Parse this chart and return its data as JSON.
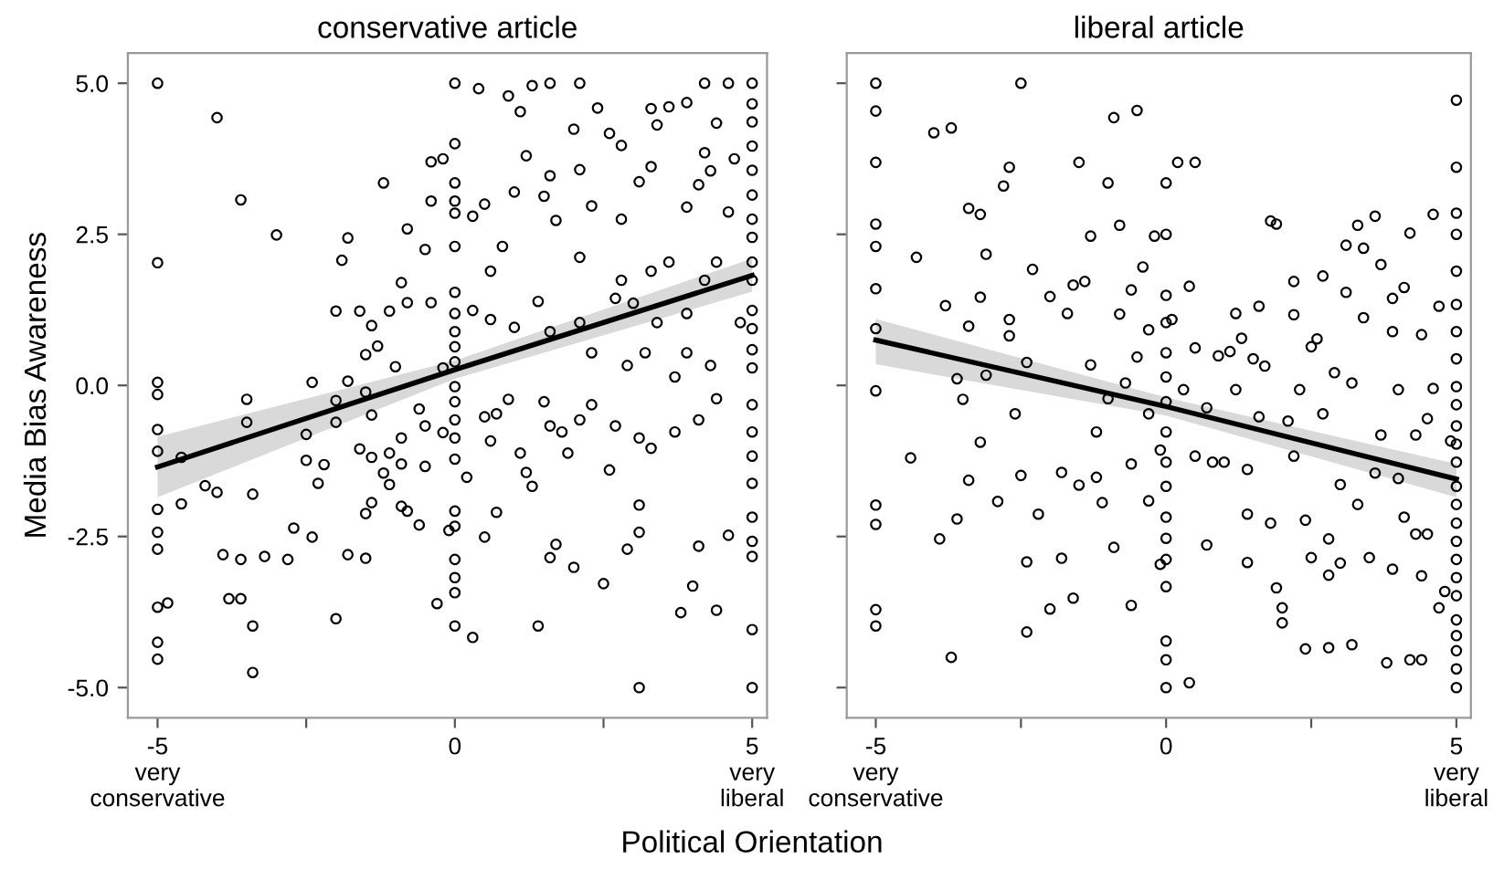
{
  "chart_data": [
    {
      "type": "scatter",
      "title": "conservative article",
      "ylabel": "Media Bias Awareness",
      "xlabel": "Political Orientation",
      "xlim": [
        -5.5,
        5.25
      ],
      "ylim": [
        -5.5,
        5.5
      ],
      "xticks": [
        {
          "value": -5,
          "label": "-5\nvery\nconservative"
        },
        {
          "value": -2.5,
          "label": null
        },
        0,
        {
          "value": 2.5,
          "label": null
        },
        {
          "value": 5,
          "label": "5\nvery\nliberal"
        }
      ],
      "yticks": [
        {
          "value": -5,
          "label": "-5.0"
        },
        {
          "value": -2.5,
          "label": "-2.5"
        },
        {
          "value": 0,
          "label": "0.0"
        },
        {
          "value": 2.5,
          "label": "2.5"
        },
        {
          "value": 5,
          "label": "5.0"
        }
      ],
      "grid": false,
      "legend": false,
      "series": [
        {
          "marker": "circle",
          "color": "#000000",
          "x": [
            -5,
            -5,
            -5,
            -5,
            -5,
            -5,
            -5,
            -5,
            -5,
            -5,
            -5,
            -5,
            -4.83,
            -4.6,
            -4.6,
            -4.0,
            -3.6,
            -3.0,
            -3.5,
            -3.5,
            -3.4,
            -3.4,
            -3.4,
            -4.2,
            -4.0,
            -3.9,
            -3.6,
            -3.8,
            -3.6,
            -3.2,
            -2.81,
            -2.71,
            -2.4,
            -2.4,
            -2.5,
            -2.5,
            -2.3,
            -2.2,
            -2.0,
            -1.9,
            -1.8,
            -2.0,
            -2.0,
            -1.8,
            -1.6,
            -1.5,
            -1.4,
            -1.6,
            -1.4,
            -1.4,
            -1.5,
            -2.0,
            -1.8,
            -1.5,
            -1.5,
            -1.4,
            -1.3,
            -1.2,
            -1.1,
            -1.1,
            -1.1,
            -1.2,
            -1.0,
            -0.9,
            -0.8,
            -0.8,
            -0.9,
            -0.9,
            -0.9,
            -0.8,
            -0.6,
            -0.5,
            -0.5,
            -0.6,
            -0.5,
            -0.4,
            -0.4,
            -0.2,
            -0.3,
            -0.1,
            -0.2,
            -0.2,
            -0.4,
            0,
            0,
            0,
            0,
            0,
            0,
            0,
            0,
            0,
            0,
            0,
            0,
            0,
            0,
            0,
            0,
            0,
            0,
            0,
            0,
            0,
            0,
            0.3,
            0.2,
            0.3,
            0.4,
            0.3,
            0.5,
            0.6,
            0.6,
            0.5,
            0.6,
            0.7,
            0.7,
            0.5,
            0.9,
            1.0,
            0.8,
            1.0,
            0.9,
            1.1,
            1.2,
            1.3,
            1.2,
            1.1,
            1.3,
            1.6,
            1.4,
            1.6,
            1.7,
            1.5,
            1.6,
            1.7,
            1.4,
            1.6,
            1.5,
            1.6,
            1.8,
            1.9,
            2.0,
            2.1,
            2.1,
            2.1,
            2.1,
            2.1,
            2.0,
            2.3,
            2.3,
            2.3,
            2.4,
            2.5,
            2.6,
            2.6,
            2.7,
            2.7,
            2.8,
            2.8,
            2.8,
            2.9,
            2.9,
            3.0,
            3.1,
            3.1,
            3.1,
            3.1,
            3.1,
            3.2,
            3.3,
            3.3,
            3.3,
            3.3,
            3.4,
            3.4,
            3.6,
            3.6,
            3.7,
            3.7,
            3.8,
            3.9,
            3.9,
            3.9,
            3.9,
            4.0,
            4.1,
            4.1,
            4.2,
            4.2,
            4.2,
            4.3,
            4.4,
            4.4,
            4.4,
            4.4,
            4.3,
            4.6,
            4.6,
            4.6,
            4.7,
            4.8,
            4.1,
            5,
            5,
            5,
            5,
            5,
            5,
            5,
            5,
            5,
            5,
            5,
            5,
            5,
            5,
            5,
            5,
            5,
            5,
            5,
            5,
            5,
            5,
            5
          ],
          "values": [
            5.0,
            2.03,
            0.05,
            -0.15,
            -0.73,
            -1.09,
            -2.05,
            -2.43,
            -2.71,
            -3.67,
            -4.25,
            -4.53,
            -3.6,
            -1.19,
            -1.96,
            4.43,
            3.07,
            2.49,
            -0.23,
            -0.61,
            -1.8,
            -3.98,
            -4.75,
            -1.66,
            -1.77,
            -2.8,
            -2.88,
            -3.53,
            -3.53,
            -2.83,
            -2.88,
            -2.36,
            -2.51,
            0.05,
            -0.81,
            -1.24,
            -1.62,
            -1.31,
            1.23,
            2.07,
            2.44,
            -0.25,
            -0.61,
            0.07,
            1.23,
            -0.11,
            -0.49,
            -1.05,
            -1.19,
            -1.94,
            -2.12,
            -3.86,
            -2.8,
            -2.86,
            0.51,
            0.99,
            0.65,
            3.35,
            1.23,
            -1.12,
            -1.64,
            -1.45,
            0.31,
            1.7,
            2.59,
            1.37,
            -0.87,
            -1.3,
            -2.0,
            -2.08,
            -2.31,
            -1.34,
            -0.67,
            -0.39,
            2.25,
            3.05,
            3.7,
            3.75,
            -3.61,
            -2.4,
            -0.78,
            0.29,
            1.37,
            5.0,
            4.0,
            3.35,
            3.05,
            2.85,
            2.3,
            1.54,
            1.19,
            0.89,
            0.64,
            0.39,
            -0.02,
            -0.27,
            -0.57,
            -0.87,
            -1.22,
            -2.08,
            -2.33,
            -2.88,
            -3.18,
            -3.43,
            -3.98,
            -4.17,
            -1.52,
            1.24,
            4.91,
            2.8,
            3.0,
            1.89,
            1.09,
            -0.52,
            -0.92,
            -0.47,
            -2.1,
            -2.51,
            4.79,
            3.2,
            2.3,
            0.96,
            -0.23,
            -1.12,
            -1.44,
            -1.67,
            3.8,
            4.53,
            4.96,
            5.0,
            -3.98,
            -2.85,
            -2.63,
            3.13,
            3.47,
            2.73,
            1.39,
            0.89,
            -0.27,
            -0.67,
            -0.77,
            -1.12,
            4.24,
            5.0,
            3.57,
            2.12,
            1.04,
            -0.57,
            -3.01,
            2.97,
            0.54,
            -0.32,
            4.59,
            -3.28,
            4.17,
            -1.4,
            -0.67,
            1.44,
            3.97,
            2.75,
            1.74,
            0.33,
            -2.71,
            1.36,
            3.37,
            -5.0,
            -2.43,
            -1.98,
            -0.87,
            0.54,
            4.58,
            3.62,
            1.89,
            -1.04,
            1.04,
            4.31,
            4.61,
            2.04,
            0.14,
            -0.77,
            -3.76,
            4.68,
            2.95,
            1.19,
            0.54,
            -3.32,
            3.32,
            -0.57,
            5.0,
            3.85,
            1.74,
            3.55,
            4.34,
            2.04,
            -0.22,
            -3.72,
            0.33,
            5.0,
            2.87,
            -2.48,
            3.75,
            1.04,
            -2.66,
            5.0,
            4.66,
            4.36,
            3.96,
            3.56,
            3.15,
            2.75,
            2.45,
            2.04,
            1.74,
            1.24,
            0.94,
            0.59,
            0.29,
            -0.32,
            -0.77,
            -1.17,
            -1.62,
            -2.18,
            -2.58,
            -2.83,
            -4.04,
            -5.0
          ]
        },
        {
          "type": "line",
          "color": "#000000",
          "line_style": "solid",
          "x": [
            -5,
            0,
            5
          ],
          "values": [
            -1.35,
            0.26,
            1.82
          ],
          "lower": [
            -1.85,
            0.11,
            1.55
          ],
          "upper": [
            -0.85,
            0.41,
            2.1
          ]
        }
      ]
    },
    {
      "type": "scatter",
      "title": "liberal article",
      "xlim": [
        -5.5,
        5.25
      ],
      "ylim": [
        -5.5,
        5.5
      ],
      "tick_labels": "x",
      "xticks": [
        {
          "value": -5,
          "label": "-5\nvery\nconservative"
        },
        {
          "value": -2.5,
          "label": null
        },
        0,
        {
          "value": 2.5,
          "label": null
        },
        {
          "value": 5,
          "label": "5\nvery\nliberal"
        }
      ],
      "yticks": [
        {
          "value": -5,
          "label": null
        },
        {
          "value": -2.5,
          "label": null
        },
        {
          "value": 0,
          "label": null
        },
        {
          "value": 2.5,
          "label": null
        },
        {
          "value": 5,
          "label": null
        }
      ],
      "grid": false,
      "legend": false,
      "series": [
        {
          "marker": "circle",
          "color": "#000000",
          "x": [
            -5,
            -5,
            -5,
            -5,
            -5,
            -5,
            -5,
            -5,
            -5,
            -5,
            -5,
            -5,
            -4.3,
            -4.4,
            -4.0,
            -3.7,
            -3.8,
            -3.9,
            -3.7,
            -3.6,
            -3.5,
            -3.4,
            -3.4,
            -3.4,
            -3.6,
            -3.2,
            -3.2,
            -3.2,
            -3.1,
            -3.1,
            -2.9,
            -2.8,
            -2.7,
            -2.7,
            -2.7,
            -2.6,
            -2.5,
            -2.5,
            -2.4,
            -2.4,
            -2.4,
            -2.3,
            -2.2,
            -2.0,
            -2.0,
            -1.8,
            -1.8,
            -1.7,
            -1.6,
            -1.6,
            -1.5,
            -1.5,
            -1.4,
            -1.3,
            -1.3,
            -1.2,
            -1.2,
            -1.1,
            -1.0,
            -1.0,
            -0.9,
            -0.9,
            -0.8,
            -0.8,
            -0.7,
            -0.6,
            -0.6,
            -0.6,
            -0.5,
            -0.5,
            -0.4,
            -0.3,
            -0.3,
            -0.3,
            -0.2,
            -0.1,
            -0.1,
            0,
            0,
            0,
            0,
            0,
            0,
            0,
            0,
            0,
            0,
            0,
            0,
            0,
            0,
            0,
            0,
            0,
            0.1,
            0.2,
            0.3,
            0.4,
            0.4,
            0.5,
            0.5,
            0.5,
            0.7,
            0.7,
            0.8,
            0.9,
            1.0,
            1.1,
            1.2,
            1.2,
            1.3,
            1.4,
            1.4,
            1.4,
            1.5,
            1.6,
            1.6,
            1.7,
            1.8,
            1.8,
            1.9,
            1.9,
            2.0,
            2.0,
            2.1,
            2.2,
            2.2,
            2.2,
            2.3,
            2.4,
            2.4,
            2.5,
            2.5,
            2.6,
            2.7,
            2.7,
            2.8,
            2.8,
            2.8,
            2.9,
            3.0,
            3.0,
            3.1,
            3.1,
            3.2,
            3.2,
            3.3,
            3.3,
            3.4,
            3.4,
            3.5,
            3.6,
            3.6,
            3.7,
            3.7,
            3.8,
            3.9,
            3.9,
            3.9,
            4.0,
            4.0,
            4.1,
            4.1,
            4.2,
            4.2,
            4.3,
            4.3,
            4.4,
            4.4,
            4.4,
            4.5,
            4.5,
            4.6,
            4.6,
            4.7,
            4.7,
            4.8,
            4.9,
            5,
            5,
            5,
            5,
            5,
            5,
            5,
            5,
            5,
            5,
            5,
            5,
            5,
            5,
            5,
            5,
            5,
            5,
            5,
            5,
            5,
            5,
            5,
            5,
            5
          ],
          "values": [
            5.0,
            4.54,
            3.69,
            2.67,
            2.3,
            1.6,
            0.94,
            -0.09,
            -1.98,
            -2.3,
            -3.71,
            -3.98,
            2.12,
            -1.2,
            4.18,
            4.26,
            1.32,
            -2.54,
            -4.5,
            0.11,
            -0.23,
            2.93,
            0.98,
            -1.57,
            -2.21,
            2.83,
            1.46,
            -0.94,
            2.17,
            0.17,
            -1.92,
            3.3,
            3.61,
            1.09,
            0.82,
            -0.47,
            5.0,
            -1.49,
            0.38,
            -2.92,
            -4.08,
            1.92,
            -2.13,
            1.47,
            -3.7,
            -1.44,
            -2.86,
            1.19,
            -3.52,
            1.66,
            3.69,
            -1.65,
            1.72,
            0.34,
            2.47,
            -0.77,
            -1.52,
            -1.94,
            3.35,
            -0.22,
            4.43,
            -2.68,
            2.65,
            1.18,
            0.04,
            -1.3,
            -3.64,
            1.58,
            4.55,
            0.47,
            1.96,
            -1.91,
            0.92,
            -0.47,
            2.47,
            -1.07,
            -2.96,
            3.35,
            2.5,
            1.49,
            1.04,
            0.54,
            0.14,
            -0.27,
            -0.77,
            -1.27,
            -1.67,
            -2.18,
            -2.53,
            -2.88,
            -3.33,
            -4.23,
            -4.54,
            -5.0,
            1.09,
            3.69,
            -0.07,
            1.64,
            -4.92,
            3.69,
            0.62,
            -1.17,
            -2.64,
            -0.37,
            -1.27,
            0.49,
            -1.27,
            0.56,
            1.19,
            -0.07,
            0.78,
            -1.39,
            -2.13,
            -2.93,
            0.44,
            1.31,
            -0.52,
            0.32,
            2.72,
            -2.28,
            2.67,
            -3.35,
            -3.68,
            -3.93,
            -0.59,
            1.72,
            1.17,
            -1.17,
            -0.07,
            -2.23,
            -4.36,
            -2.85,
            0.64,
            0.77,
            1.81,
            -0.47,
            -2.54,
            -3.14,
            -4.34,
            0.21,
            -1.64,
            -2.94,
            2.32,
            1.54,
            -4.29,
            0.04,
            2.65,
            -1.97,
            2.27,
            1.12,
            -2.85,
            2.8,
            -1.45,
            2.0,
            -0.82,
            -4.59,
            1.44,
            0.89,
            -3.04,
            -0.07,
            -1.54,
            1.62,
            -2.18,
            2.52,
            -4.54,
            -0.82,
            -2.46,
            0.84,
            -3.15,
            -4.54,
            -0.55,
            -2.46,
            2.83,
            -0.05,
            1.31,
            -3.68,
            -3.41,
            -0.92,
            4.72,
            3.61,
            2.85,
            2.5,
            1.89,
            1.34,
            0.89,
            0.44,
            -0.02,
            -0.32,
            -0.67,
            -0.97,
            -1.27,
            -1.67,
            -1.97,
            -2.28,
            -2.58,
            -2.88,
            -3.18,
            -3.48,
            -3.88,
            -4.14,
            -4.39,
            -4.69,
            -5.0
          ]
        },
        {
          "type": "line",
          "color": "#000000",
          "line_style": "solid",
          "x": [
            -5,
            0,
            5
          ],
          "values": [
            0.75,
            -0.35,
            -1.55
          ],
          "lower": [
            0.35,
            -0.5,
            -1.85
          ],
          "upper": [
            1.1,
            -0.2,
            -1.3
          ]
        }
      ]
    }
  ]
}
